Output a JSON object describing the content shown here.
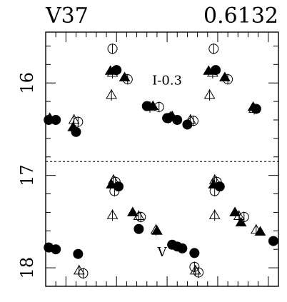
{
  "chart_data": {
    "type": "scatter",
    "title_left": "V37",
    "title_right": "0.6132",
    "xlabel": "",
    "ylabel": "",
    "xlim": [
      -0.2,
      2.1
    ],
    "ylim": [
      18.2,
      15.45
    ],
    "y_inverted": true,
    "y_tick_labels": [
      "16",
      "17",
      "18"
    ],
    "y_tick_values": [
      16,
      17,
      18
    ],
    "x_ticks_labeled": false,
    "separator_y": 16.85,
    "grid": false,
    "annotations": [
      {
        "text": "I-0.3",
        "x": 1.0,
        "y": 15.97
      },
      {
        "text": "V",
        "x": 0.95,
        "y": 17.83
      }
    ],
    "series": [
      {
        "band": "I-0.3",
        "marker": "filled-circle",
        "points": [
          [
            -0.17,
            16.4
          ],
          [
            -0.1,
            16.4
          ],
          [
            0.1,
            16.53
          ],
          [
            0.5,
            15.86
          ],
          [
            0.8,
            16.25
          ],
          [
            1.0,
            16.38
          ],
          [
            1.1,
            16.4
          ],
          [
            1.2,
            16.45
          ],
          [
            1.48,
            15.86
          ],
          [
            1.88,
            16.28
          ]
        ]
      },
      {
        "band": "I-0.3",
        "marker": "filled-triangle",
        "points": [
          [
            -0.16,
            16.38
          ],
          [
            0.07,
            16.48
          ],
          [
            0.44,
            15.87
          ],
          [
            0.58,
            15.94
          ],
          [
            0.86,
            16.25
          ],
          [
            1.05,
            16.36
          ],
          [
            1.41,
            15.87
          ],
          [
            1.57,
            15.94
          ],
          [
            1.85,
            16.26
          ]
        ]
      },
      {
        "band": "I-0.3",
        "marker": "open-circle",
        "points": [
          [
            0.12,
            16.42
          ],
          [
            0.46,
            15.63
          ],
          [
            0.61,
            15.96
          ],
          [
            0.92,
            16.26
          ],
          [
            1.01,
            16.38
          ],
          [
            1.26,
            16.41
          ],
          [
            1.46,
            15.63
          ],
          [
            1.6,
            15.96
          ]
        ]
      },
      {
        "band": "I-0.3",
        "marker": "open-triangle",
        "points": [
          [
            0.08,
            16.4
          ],
          [
            0.45,
            16.13
          ],
          [
            0.46,
            15.89
          ],
          [
            0.83,
            16.26
          ],
          [
            1.03,
            16.37
          ],
          [
            1.23,
            16.4
          ],
          [
            1.42,
            16.13
          ],
          [
            1.45,
            15.89
          ],
          [
            1.86,
            16.28
          ]
        ]
      },
      {
        "band": "V",
        "marker": "filled-circle",
        "points": [
          [
            -0.17,
            17.78
          ],
          [
            -0.1,
            17.8
          ],
          [
            0.12,
            17.85
          ],
          [
            0.52,
            17.12
          ],
          [
            0.72,
            17.58
          ],
          [
            1.05,
            17.75
          ],
          [
            1.1,
            17.77
          ],
          [
            1.15,
            17.79
          ],
          [
            1.27,
            17.84
          ],
          [
            1.52,
            17.12
          ],
          [
            2.05,
            17.71
          ]
        ]
      },
      {
        "band": "V",
        "marker": "filled-triangle",
        "points": [
          [
            0.45,
            17.1
          ],
          [
            0.66,
            17.4
          ],
          [
            0.9,
            17.6
          ],
          [
            1.46,
            17.1
          ],
          [
            1.67,
            17.4
          ],
          [
            1.73,
            17.51
          ],
          [
            1.92,
            17.61
          ]
        ]
      },
      {
        "band": "V",
        "marker": "open-circle",
        "points": [
          [
            0.17,
            18.06
          ],
          [
            0.48,
            17.17
          ],
          [
            0.49,
            17.07
          ],
          [
            0.74,
            17.45
          ],
          [
            1.27,
            17.99
          ],
          [
            1.31,
            18.05
          ],
          [
            1.47,
            17.17
          ],
          [
            1.49,
            17.07
          ],
          [
            1.76,
            17.45
          ]
        ]
      },
      {
        "band": "V",
        "marker": "open-triangle",
        "points": [
          [
            0.13,
            18.03
          ],
          [
            0.46,
            17.43
          ],
          [
            0.47,
            17.05
          ],
          [
            0.72,
            17.44
          ],
          [
            0.89,
            17.59
          ],
          [
            1.28,
            18.03
          ],
          [
            1.47,
            17.43
          ],
          [
            1.47,
            17.05
          ],
          [
            1.71,
            17.44
          ],
          [
            1.88,
            17.59
          ]
        ]
      }
    ]
  }
}
